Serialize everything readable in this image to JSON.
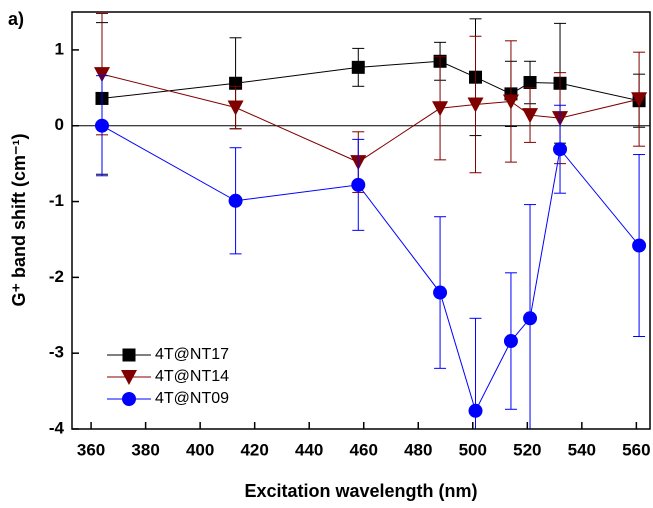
{
  "chart_data": {
    "type": "line",
    "panel_label": "a)",
    "x_label": "Excitation wavelength (nm)",
    "y_label": "G⁺ band shift (cm⁻¹)",
    "x": [
      364,
      413,
      458,
      488,
      501,
      514,
      521,
      532,
      561
    ],
    "series": [
      {
        "name": "4T@NT17",
        "color": "#000000",
        "marker": "square",
        "values": [
          0.36,
          0.56,
          0.77,
          0.85,
          0.64,
          0.42,
          0.57,
          0.56,
          0.33
        ],
        "errors": [
          1.0,
          0.6,
          0.25,
          0.25,
          0.77,
          0.43,
          0.28,
          0.79,
          0.35
        ]
      },
      {
        "name": "4T@NT14",
        "color": "#800000",
        "marker": "triangle",
        "values": [
          0.68,
          0.24,
          -0.48,
          0.23,
          0.28,
          0.32,
          0.14,
          0.1,
          0.35
        ],
        "errors": [
          0.8,
          0.28,
          0.4,
          0.68,
          0.9,
          0.8,
          0.36,
          0.6,
          0.62
        ]
      },
      {
        "name": "4T@NT09",
        "color": "#0000ff",
        "marker": "circle",
        "values": [
          0.0,
          -0.99,
          -0.78,
          -2.2,
          -3.76,
          -2.84,
          -2.54,
          -0.31,
          -1.58
        ],
        "errors": [
          0.66,
          0.7,
          0.6,
          1.0,
          1.22,
          0.9,
          1.5,
          0.58,
          1.2
        ]
      }
    ],
    "hline": 0,
    "xlim": [
      353,
      565
    ],
    "ylim": [
      -4,
      1.5
    ],
    "xticks": [
      360,
      380,
      400,
      420,
      440,
      460,
      480,
      500,
      520,
      540,
      560
    ],
    "yticks": [
      -4,
      -3,
      -2,
      -1,
      0,
      1
    ],
    "legend": "lower left"
  }
}
